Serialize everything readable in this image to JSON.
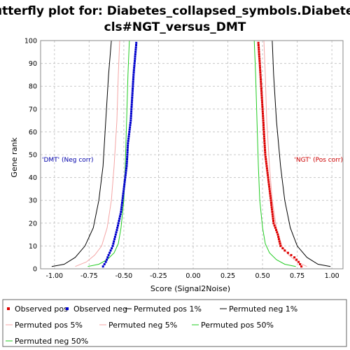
{
  "chart_data": {
    "type": "scatter",
    "title_line1": "Butterfly plot for: Diabetes_collapsed_symbols.Diabetes.",
    "title_line2": "cls#NGT_versus_DMT",
    "xlabel": "Score (Signal2Noise)",
    "ylabel": "Gene rank",
    "xlim": [
      -1.1,
      1.08
    ],
    "ylim": [
      0,
      100
    ],
    "xticks": [
      "-1.00",
      "-0.75",
      "-0.50",
      "-0.25",
      "0.00",
      "0.25",
      "0.50",
      "0.75",
      "1.00"
    ],
    "xtick_values": [
      -1.0,
      -0.75,
      -0.5,
      -0.25,
      0.0,
      0.25,
      0.5,
      0.75,
      1.0
    ],
    "yticks": [
      "0",
      "10",
      "20",
      "30",
      "40",
      "50",
      "60",
      "70",
      "80",
      "90",
      "100"
    ],
    "ytick_values": [
      0,
      10,
      20,
      30,
      40,
      50,
      60,
      70,
      80,
      90,
      100
    ],
    "grid": true,
    "annotations": {
      "neg": "'DMT' (Neg corr)",
      "pos": "'NGT' (Pos corr)"
    },
    "series": [
      {
        "name": "Observed pos",
        "kind": "points",
        "color": "#dd0000",
        "anchors": [
          [
            0.78,
            1
          ],
          [
            0.76,
            3
          ],
          [
            0.73,
            5
          ],
          [
            0.66,
            8
          ],
          [
            0.63,
            10
          ],
          [
            0.61,
            15
          ],
          [
            0.58,
            20
          ],
          [
            0.56,
            30
          ],
          [
            0.54,
            40
          ],
          [
            0.52,
            50
          ],
          [
            0.51,
            60
          ],
          [
            0.5,
            70
          ],
          [
            0.49,
            80
          ],
          [
            0.48,
            90
          ],
          [
            0.47,
            99
          ]
        ]
      },
      {
        "name": "Observed neg",
        "kind": "points",
        "color": "#0000cc",
        "anchors": [
          [
            -0.65,
            1
          ],
          [
            -0.63,
            3
          ],
          [
            -0.61,
            6
          ],
          [
            -0.58,
            10
          ],
          [
            -0.55,
            17
          ],
          [
            -0.52,
            25
          ],
          [
            -0.5,
            35
          ],
          [
            -0.48,
            45
          ],
          [
            -0.47,
            55
          ],
          [
            -0.45,
            65
          ],
          [
            -0.44,
            75
          ],
          [
            -0.43,
            85
          ],
          [
            -0.42,
            92
          ],
          [
            -0.41,
            99
          ]
        ]
      },
      {
        "name": "Permuted pos 1%",
        "kind": "line",
        "color": "#000000",
        "anchors": [
          [
            0.99,
            1
          ],
          [
            0.9,
            2
          ],
          [
            0.82,
            5
          ],
          [
            0.75,
            10
          ],
          [
            0.7,
            18
          ],
          [
            0.66,
            30
          ],
          [
            0.63,
            45
          ],
          [
            0.6,
            65
          ],
          [
            0.58,
            85
          ],
          [
            0.57,
            100
          ]
        ]
      },
      {
        "name": "Permuted neg 1%",
        "kind": "line",
        "color": "#000000",
        "anchors": [
          [
            -1.02,
            1
          ],
          [
            -0.93,
            2
          ],
          [
            -0.85,
            5
          ],
          [
            -0.78,
            10
          ],
          [
            -0.72,
            18
          ],
          [
            -0.68,
            30
          ],
          [
            -0.65,
            45
          ],
          [
            -0.63,
            65
          ],
          [
            -0.61,
            85
          ],
          [
            -0.59,
            100
          ]
        ]
      },
      {
        "name": "Permuted pos 5%",
        "kind": "line",
        "color": "#f4a6a6",
        "anchors": [
          [
            0.82,
            1
          ],
          [
            0.75,
            3
          ],
          [
            0.69,
            6
          ],
          [
            0.64,
            10
          ],
          [
            0.6,
            18
          ],
          [
            0.57,
            30
          ],
          [
            0.55,
            45
          ],
          [
            0.53,
            65
          ],
          [
            0.52,
            85
          ],
          [
            0.51,
            100
          ]
        ]
      },
      {
        "name": "Permuted neg 5%",
        "kind": "line",
        "color": "#f4a6a6",
        "anchors": [
          [
            -0.85,
            1
          ],
          [
            -0.77,
            3
          ],
          [
            -0.71,
            6
          ],
          [
            -0.66,
            10
          ],
          [
            -0.62,
            18
          ],
          [
            -0.59,
            30
          ],
          [
            -0.57,
            45
          ],
          [
            -0.55,
            65
          ],
          [
            -0.54,
            85
          ],
          [
            -0.53,
            100
          ]
        ]
      },
      {
        "name": "Permuted pos 50%",
        "kind": "line",
        "color": "#22cc22",
        "anchors": [
          [
            0.74,
            1
          ],
          [
            0.66,
            2
          ],
          [
            0.6,
            4
          ],
          [
            0.55,
            7
          ],
          [
            0.52,
            11
          ],
          [
            0.5,
            18
          ],
          [
            0.48,
            30
          ],
          [
            0.47,
            45
          ],
          [
            0.46,
            65
          ],
          [
            0.45,
            85
          ],
          [
            0.44,
            100
          ]
        ]
      },
      {
        "name": "Permuted neg 50%",
        "kind": "line",
        "color": "#22cc22",
        "anchors": [
          [
            -0.76,
            1
          ],
          [
            -0.68,
            2
          ],
          [
            -0.62,
            4
          ],
          [
            -0.57,
            7
          ],
          [
            -0.54,
            11
          ],
          [
            -0.52,
            18
          ],
          [
            -0.5,
            30
          ],
          [
            -0.49,
            45
          ],
          [
            -0.48,
            65
          ],
          [
            -0.47,
            85
          ],
          [
            -0.46,
            100
          ]
        ]
      }
    ]
  }
}
